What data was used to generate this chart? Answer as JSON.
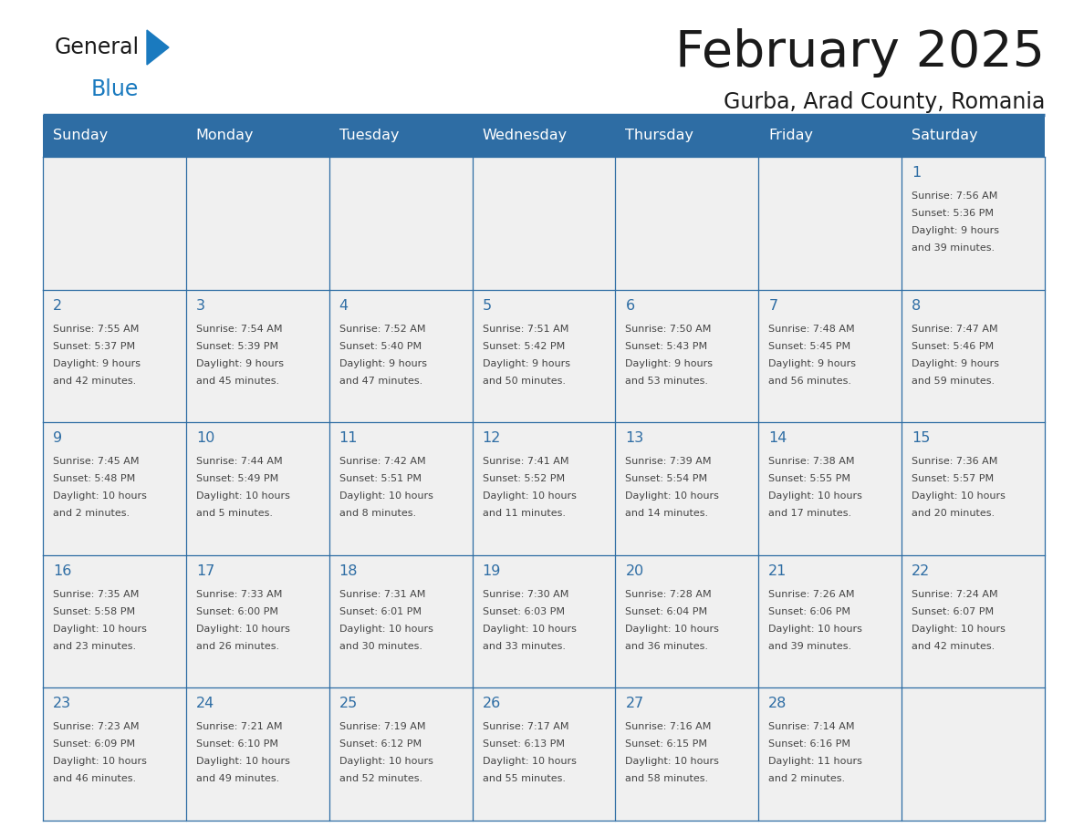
{
  "title": "February 2025",
  "subtitle": "Gurba, Arad County, Romania",
  "days_of_week": [
    "Sunday",
    "Monday",
    "Tuesday",
    "Wednesday",
    "Thursday",
    "Friday",
    "Saturday"
  ],
  "header_bg": "#2E6DA4",
  "header_text_color": "#FFFFFF",
  "cell_bg": "#F0F0F0",
  "border_color": "#2E6DA4",
  "title_color": "#1a1a1a",
  "day_number_color": "#2E6DA4",
  "cell_text_color": "#444444",
  "logo_general_color": "#1a1a1a",
  "logo_blue_color": "#1a7abf",
  "logo_triangle_color": "#1a7abf",
  "calendar_data": [
    [
      null,
      null,
      null,
      null,
      null,
      null,
      {
        "day": "1",
        "sunrise": "7:56 AM",
        "sunset": "5:36 PM",
        "dl1": "Daylight: 9 hours",
        "dl2": "and 39 minutes."
      }
    ],
    [
      {
        "day": "2",
        "sunrise": "7:55 AM",
        "sunset": "5:37 PM",
        "dl1": "Daylight: 9 hours",
        "dl2": "and 42 minutes."
      },
      {
        "day": "3",
        "sunrise": "7:54 AM",
        "sunset": "5:39 PM",
        "dl1": "Daylight: 9 hours",
        "dl2": "and 45 minutes."
      },
      {
        "day": "4",
        "sunrise": "7:52 AM",
        "sunset": "5:40 PM",
        "dl1": "Daylight: 9 hours",
        "dl2": "and 47 minutes."
      },
      {
        "day": "5",
        "sunrise": "7:51 AM",
        "sunset": "5:42 PM",
        "dl1": "Daylight: 9 hours",
        "dl2": "and 50 minutes."
      },
      {
        "day": "6",
        "sunrise": "7:50 AM",
        "sunset": "5:43 PM",
        "dl1": "Daylight: 9 hours",
        "dl2": "and 53 minutes."
      },
      {
        "day": "7",
        "sunrise": "7:48 AM",
        "sunset": "5:45 PM",
        "dl1": "Daylight: 9 hours",
        "dl2": "and 56 minutes."
      },
      {
        "day": "8",
        "sunrise": "7:47 AM",
        "sunset": "5:46 PM",
        "dl1": "Daylight: 9 hours",
        "dl2": "and 59 minutes."
      }
    ],
    [
      {
        "day": "9",
        "sunrise": "7:45 AM",
        "sunset": "5:48 PM",
        "dl1": "Daylight: 10 hours",
        "dl2": "and 2 minutes."
      },
      {
        "day": "10",
        "sunrise": "7:44 AM",
        "sunset": "5:49 PM",
        "dl1": "Daylight: 10 hours",
        "dl2": "and 5 minutes."
      },
      {
        "day": "11",
        "sunrise": "7:42 AM",
        "sunset": "5:51 PM",
        "dl1": "Daylight: 10 hours",
        "dl2": "and 8 minutes."
      },
      {
        "day": "12",
        "sunrise": "7:41 AM",
        "sunset": "5:52 PM",
        "dl1": "Daylight: 10 hours",
        "dl2": "and 11 minutes."
      },
      {
        "day": "13",
        "sunrise": "7:39 AM",
        "sunset": "5:54 PM",
        "dl1": "Daylight: 10 hours",
        "dl2": "and 14 minutes."
      },
      {
        "day": "14",
        "sunrise": "7:38 AM",
        "sunset": "5:55 PM",
        "dl1": "Daylight: 10 hours",
        "dl2": "and 17 minutes."
      },
      {
        "day": "15",
        "sunrise": "7:36 AM",
        "sunset": "5:57 PM",
        "dl1": "Daylight: 10 hours",
        "dl2": "and 20 minutes."
      }
    ],
    [
      {
        "day": "16",
        "sunrise": "7:35 AM",
        "sunset": "5:58 PM",
        "dl1": "Daylight: 10 hours",
        "dl2": "and 23 minutes."
      },
      {
        "day": "17",
        "sunrise": "7:33 AM",
        "sunset": "6:00 PM",
        "dl1": "Daylight: 10 hours",
        "dl2": "and 26 minutes."
      },
      {
        "day": "18",
        "sunrise": "7:31 AM",
        "sunset": "6:01 PM",
        "dl1": "Daylight: 10 hours",
        "dl2": "and 30 minutes."
      },
      {
        "day": "19",
        "sunrise": "7:30 AM",
        "sunset": "6:03 PM",
        "dl1": "Daylight: 10 hours",
        "dl2": "and 33 minutes."
      },
      {
        "day": "20",
        "sunrise": "7:28 AM",
        "sunset": "6:04 PM",
        "dl1": "Daylight: 10 hours",
        "dl2": "and 36 minutes."
      },
      {
        "day": "21",
        "sunrise": "7:26 AM",
        "sunset": "6:06 PM",
        "dl1": "Daylight: 10 hours",
        "dl2": "and 39 minutes."
      },
      {
        "day": "22",
        "sunrise": "7:24 AM",
        "sunset": "6:07 PM",
        "dl1": "Daylight: 10 hours",
        "dl2": "and 42 minutes."
      }
    ],
    [
      {
        "day": "23",
        "sunrise": "7:23 AM",
        "sunset": "6:09 PM",
        "dl1": "Daylight: 10 hours",
        "dl2": "and 46 minutes."
      },
      {
        "day": "24",
        "sunrise": "7:21 AM",
        "sunset": "6:10 PM",
        "dl1": "Daylight: 10 hours",
        "dl2": "and 49 minutes."
      },
      {
        "day": "25",
        "sunrise": "7:19 AM",
        "sunset": "6:12 PM",
        "dl1": "Daylight: 10 hours",
        "dl2": "and 52 minutes."
      },
      {
        "day": "26",
        "sunrise": "7:17 AM",
        "sunset": "6:13 PM",
        "dl1": "Daylight: 10 hours",
        "dl2": "and 55 minutes."
      },
      {
        "day": "27",
        "sunrise": "7:16 AM",
        "sunset": "6:15 PM",
        "dl1": "Daylight: 10 hours",
        "dl2": "and 58 minutes."
      },
      {
        "day": "28",
        "sunrise": "7:14 AM",
        "sunset": "6:16 PM",
        "dl1": "Daylight: 11 hours",
        "dl2": "and 2 minutes."
      },
      null
    ]
  ]
}
